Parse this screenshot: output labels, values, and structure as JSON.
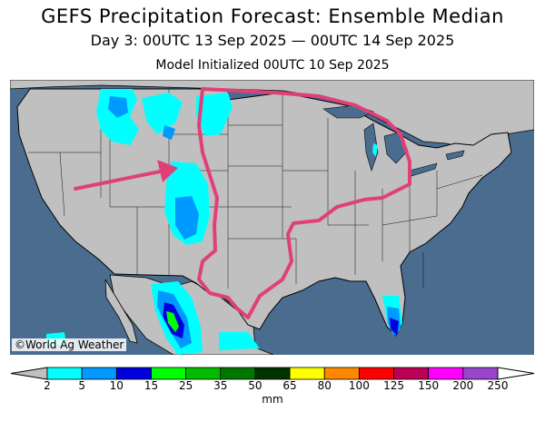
{
  "header": {
    "title": "GEFS Precipitation Forecast: Ensemble Median",
    "period": "Day 3: 00UTC 13 Sep 2025 — 00UTC 14 Sep 2025",
    "init": "Model Initialized 00UTC 10 Sep 2025"
  },
  "map": {
    "credit": "©World Ag Weather",
    "region": "Contiguous United States",
    "annotation_color": "#e0407a",
    "land_color": "#c0c0c0",
    "water_color": "#4a6d8f"
  },
  "legend": {
    "unit": "mm",
    "ticks": [
      "2",
      "5",
      "10",
      "15",
      "25",
      "35",
      "50",
      "65",
      "80",
      "100",
      "125",
      "150",
      "200",
      "250"
    ],
    "colors": [
      "#00ffff",
      "#0099ff",
      "#0000dd",
      "#00ff00",
      "#00bb00",
      "#007700",
      "#003300",
      "#ffff00",
      "#ff8800",
      "#ff0000",
      "#bb0055",
      "#ff00ff",
      "#9944cc"
    ]
  }
}
